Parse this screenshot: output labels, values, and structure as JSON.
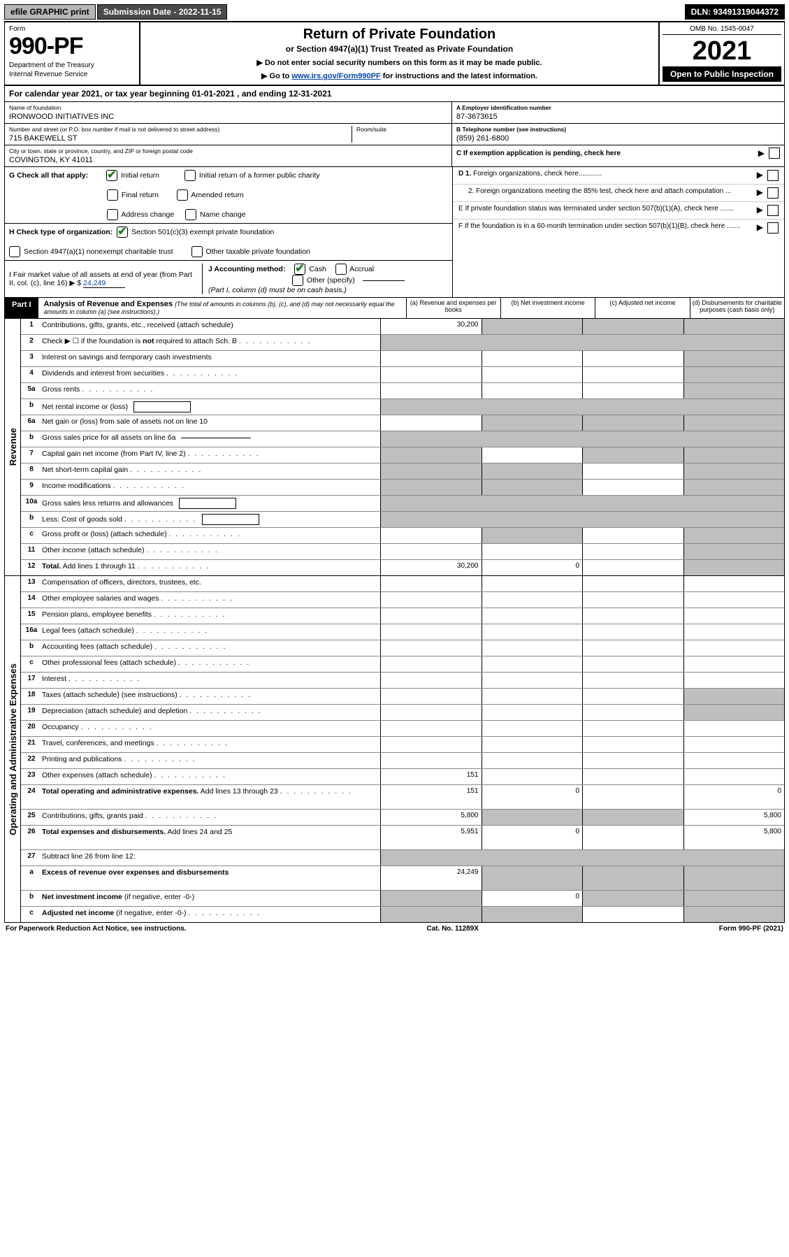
{
  "topbar": {
    "efile": "efile GRAPHIC print",
    "submission": "Submission Date - 2022-11-15",
    "dln": "DLN: 93491319044372"
  },
  "header": {
    "form_label": "Form",
    "form_number": "990-PF",
    "dept1": "Department of the Treasury",
    "dept2": "Internal Revenue Service",
    "title": "Return of Private Foundation",
    "subtitle": "or Section 4947(a)(1) Trust Treated as Private Foundation",
    "note1": "▶ Do not enter social security numbers on this form as it may be made public.",
    "note2_pre": "▶ Go to ",
    "note2_link": "www.irs.gov/Form990PF",
    "note2_post": " for instructions and the latest information.",
    "omb": "OMB No. 1545-0047",
    "year": "2021",
    "open": "Open to Public Inspection"
  },
  "calyear": "For calendar year 2021, or tax year beginning 01-01-2021              , and ending 12-31-2021",
  "info": {
    "name_label": "Name of foundation",
    "name": "IRONWOOD INITIATIVES INC",
    "addr_label": "Number and street (or P.O. box number if mail is not delivered to street address)",
    "addr": "715 BAKEWELL ST",
    "room_label": "Room/suite",
    "city_label": "City or town, state or province, country, and ZIP or foreign postal code",
    "city": "COVINGTON, KY  41011",
    "ein_label": "A Employer identification number",
    "ein": "87-3673615",
    "tel_label": "B Telephone number (see instructions)",
    "tel": "(859) 261-6800",
    "c_label": "C If exemption application is pending, check here"
  },
  "checks": {
    "g_label": "G Check all that apply:",
    "initial": "Initial return",
    "initial_former": "Initial return of a former public charity",
    "final": "Final return",
    "amended": "Amended return",
    "addr_change": "Address change",
    "name_change": "Name change",
    "h_label": "H Check type of organization:",
    "h_501c3": "Section 501(c)(3) exempt private foundation",
    "h_4947": "Section 4947(a)(1) nonexempt charitable trust",
    "h_other_tax": "Other taxable private foundation",
    "i_label": "I Fair market value of all assets at end of year (from Part II, col. (c), line 16)",
    "i_val": "24,249",
    "j_label": "J Accounting method:",
    "j_cash": "Cash",
    "j_accrual": "Accrual",
    "j_other": "Other (specify)",
    "j_note": "(Part I, column (d) must be on cash basis.)",
    "d1": "D 1. Foreign organizations, check here............",
    "d2": "2. Foreign organizations meeting the 85% test, check here and attach computation ...",
    "e_label": "E  If private foundation status was terminated under section 507(b)(1)(A), check here .......",
    "f_label": "F  If the foundation is in a 60-month termination under section 507(b)(1)(B), check here ......."
  },
  "part1": {
    "label": "Part I",
    "title": "Analysis of Revenue and Expenses",
    "note": " (The total of amounts in columns (b), (c), and (d) may not necessarily equal the amounts in column (a) (see instructions).)",
    "col_a": "(a)  Revenue and expenses per books",
    "col_b": "(b)  Net investment income",
    "col_c": "(c)  Adjusted net income",
    "col_d": "(d)  Disbursements for charitable purposes (cash basis only)"
  },
  "sections": {
    "revenue": "Revenue",
    "opex": "Operating and Administrative Expenses"
  },
  "rows": [
    {
      "n": "1",
      "label": "Contributions, gifts, grants, etc., received (attach schedule)",
      "a": "30,200",
      "b": "sh",
      "c": "sh",
      "d": "sh"
    },
    {
      "n": "2",
      "label": "Check ▶ ☐ if the foundation is <b>not</b> required to attach Sch. B",
      "dots": true,
      "full": true
    },
    {
      "n": "3",
      "label": "Interest on savings and temporary cash investments",
      "a": "",
      "b": "",
      "c": "",
      "d": "sh"
    },
    {
      "n": "4",
      "label": "Dividends and interest from securities",
      "dots": true,
      "a": "",
      "b": "",
      "c": "",
      "d": "sh"
    },
    {
      "n": "5a",
      "label": "Gross rents",
      "dots": true,
      "a": "",
      "b": "",
      "c": "",
      "d": "sh"
    },
    {
      "n": "b",
      "label": "Net rental income or (loss)",
      "box": true,
      "full": true
    },
    {
      "n": "6a",
      "label": "Net gain or (loss) from sale of assets not on line 10",
      "a": "",
      "b": "sh",
      "c": "sh",
      "d": "sh"
    },
    {
      "n": "b",
      "label": "Gross sales price for all assets on line 6a",
      "line": true,
      "full": true
    },
    {
      "n": "7",
      "label": "Capital gain net income (from Part IV, line 2)",
      "dots": true,
      "a": "sh",
      "b": "",
      "c": "sh",
      "d": "sh"
    },
    {
      "n": "8",
      "label": "Net short-term capital gain",
      "dots": true,
      "a": "sh",
      "b": "sh",
      "c": "",
      "d": "sh"
    },
    {
      "n": "9",
      "label": "Income modifications",
      "dots": true,
      "a": "sh",
      "b": "sh",
      "c": "",
      "d": "sh"
    },
    {
      "n": "10a",
      "label": "Gross sales less returns and allowances",
      "box": true,
      "full": true
    },
    {
      "n": "b",
      "label": "Less: Cost of goods sold",
      "dots": true,
      "box": true,
      "full": true
    },
    {
      "n": "c",
      "label": "Gross profit or (loss) (attach schedule)",
      "dots": true,
      "a": "",
      "b": "sh",
      "c": "",
      "d": "sh"
    },
    {
      "n": "11",
      "label": "Other income (attach schedule)",
      "dots": true,
      "a": "",
      "b": "",
      "c": "",
      "d": "sh"
    },
    {
      "n": "12",
      "label": "<b>Total.</b> Add lines 1 through 11",
      "dots": true,
      "a": "30,200",
      "b": "0",
      "c": "",
      "d": "sh"
    }
  ],
  "rows_opex": [
    {
      "n": "13",
      "label": "Compensation of officers, directors, trustees, etc.",
      "a": "",
      "b": "",
      "c": "",
      "d": ""
    },
    {
      "n": "14",
      "label": "Other employee salaries and wages",
      "dots": true,
      "a": "",
      "b": "",
      "c": "",
      "d": ""
    },
    {
      "n": "15",
      "label": "Pension plans, employee benefits",
      "dots": true,
      "a": "",
      "b": "",
      "c": "",
      "d": ""
    },
    {
      "n": "16a",
      "label": "Legal fees (attach schedule)",
      "dots": true,
      "a": "",
      "b": "",
      "c": "",
      "d": ""
    },
    {
      "n": "b",
      "label": "Accounting fees (attach schedule)",
      "dots": true,
      "a": "",
      "b": "",
      "c": "",
      "d": ""
    },
    {
      "n": "c",
      "label": "Other professional fees (attach schedule)",
      "dots": true,
      "a": "",
      "b": "",
      "c": "",
      "d": ""
    },
    {
      "n": "17",
      "label": "Interest",
      "dots": true,
      "a": "",
      "b": "",
      "c": "",
      "d": ""
    },
    {
      "n": "18",
      "label": "Taxes (attach schedule) (see instructions)",
      "dots": true,
      "a": "",
      "b": "",
      "c": "",
      "d": "sh"
    },
    {
      "n": "19",
      "label": "Depreciation (attach schedule) and depletion",
      "dots": true,
      "a": "",
      "b": "",
      "c": "",
      "d": "sh"
    },
    {
      "n": "20",
      "label": "Occupancy",
      "dots": true,
      "a": "",
      "b": "",
      "c": "",
      "d": ""
    },
    {
      "n": "21",
      "label": "Travel, conferences, and meetings",
      "dots": true,
      "a": "",
      "b": "",
      "c": "",
      "d": ""
    },
    {
      "n": "22",
      "label": "Printing and publications",
      "dots": true,
      "a": "",
      "b": "",
      "c": "",
      "d": ""
    },
    {
      "n": "23",
      "label": "Other expenses (attach schedule)",
      "dots": true,
      "a": "151",
      "b": "",
      "c": "",
      "d": ""
    },
    {
      "n": "24",
      "label": "<b>Total operating and administrative expenses.</b> Add lines 13 through 23",
      "dots": true,
      "a": "151",
      "b": "0",
      "c": "",
      "d": "0",
      "tall": true
    },
    {
      "n": "25",
      "label": "Contributions, gifts, grants paid",
      "dots": true,
      "a": "5,800",
      "b": "sh",
      "c": "sh",
      "d": "5,800"
    },
    {
      "n": "26",
      "label": "<b>Total expenses and disbursements.</b> Add lines 24 and 25",
      "a": "5,951",
      "b": "0",
      "c": "",
      "d": "5,800",
      "tall": true
    },
    {
      "n": "27",
      "label": "Subtract line 26 from line 12:",
      "full": true
    },
    {
      "n": "a",
      "label": "<b>Excess of revenue over expenses and disbursements</b>",
      "a": "24,249",
      "b": "sh",
      "c": "sh",
      "d": "sh",
      "tall": true
    },
    {
      "n": "b",
      "label": "<b>Net investment income</b> (if negative, enter -0-)",
      "a": "sh",
      "b": "0",
      "c": "sh",
      "d": "sh"
    },
    {
      "n": "c",
      "label": "<b>Adjusted net income</b> (if negative, enter -0-)",
      "dots": true,
      "a": "sh",
      "b": "sh",
      "c": "",
      "d": "sh"
    }
  ],
  "footer": {
    "left": "For Paperwork Reduction Act Notice, see instructions.",
    "mid": "Cat. No. 11289X",
    "right": "Form 990-PF (2021)"
  }
}
